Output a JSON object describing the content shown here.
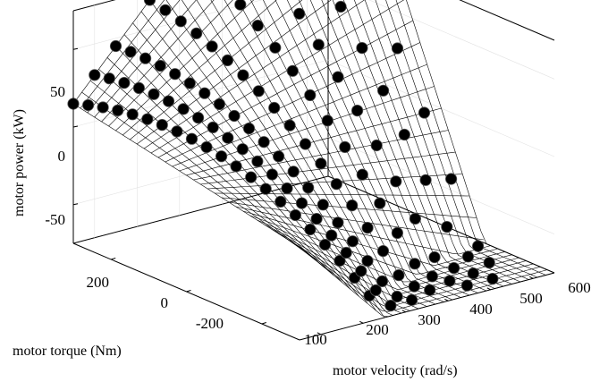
{
  "chart_data": {
    "type": "scatter",
    "subtype": "3d-surface-with-points",
    "title": "",
    "x_axis": {
      "label": "motor velocity (rad/s)",
      "ticks": [
        "100",
        "200",
        "300",
        "400",
        "500",
        "600"
      ],
      "range": [
        50,
        650
      ]
    },
    "y_axis": {
      "label": "motor torque (Nm)",
      "ticks": [
        "200",
        "0",
        "-200"
      ],
      "range": [
        -300,
        300
      ]
    },
    "z_axis": {
      "label": "motor power (kW)",
      "ticks": [
        "50",
        "0",
        "-50"
      ],
      "range": [
        -75,
        75
      ]
    },
    "surface": {
      "mesh_color": "#000000",
      "background": "#ffffff",
      "grid_lines_x": 31,
      "grid_lines_y": 33
    },
    "points_color": "#000000",
    "series": [
      {
        "x": [
          50,
          60,
          70,
          80,
          90,
          100,
          110,
          120,
          130,
          140,
          150,
          160,
          170,
          180,
          190,
          200,
          210,
          220,
          230,
          240,
          250
        ],
        "y": [
          300,
          272,
          244,
          216,
          188,
          160,
          132,
          104,
          76,
          48,
          20,
          -8,
          -36,
          -64,
          -92,
          -120,
          -148,
          -176,
          -204,
          -232,
          -260
        ]
      },
      {
        "x": [
          100,
          110,
          120,
          130,
          140,
          150,
          160,
          170,
          180,
          190,
          200,
          210,
          220,
          230,
          240,
          250,
          260,
          270,
          280,
          290,
          300
        ],
        "y": [
          300,
          272,
          244,
          216,
          188,
          160,
          132,
          104,
          76,
          48,
          20,
          -8,
          -36,
          -64,
          -92,
          -120,
          -148,
          -176,
          -204,
          -232,
          -260
        ]
      },
      {
        "x": [
          150,
          160,
          170,
          180,
          190,
          200,
          210,
          220,
          230,
          240,
          250,
          260,
          270,
          280,
          290,
          300,
          310,
          320,
          330,
          340,
          350
        ],
        "y": [
          300,
          272,
          244,
          216,
          188,
          160,
          132,
          104,
          76,
          48,
          20,
          -8,
          -36,
          -64,
          -92,
          -120,
          -148,
          -176,
          -204,
          -232,
          -260
        ]
      },
      {
        "x": [
          230,
          240,
          250,
          260,
          270,
          280,
          290,
          300,
          310,
          320,
          330,
          340,
          350,
          360,
          370,
          380,
          390,
          400,
          410
        ],
        "y": [
          300,
          270,
          240,
          210,
          180,
          150,
          120,
          90,
          60,
          30,
          0,
          -30,
          -60,
          -90,
          -120,
          -150,
          -180,
          -210,
          -240
        ]
      },
      {
        "x": [
          320,
          330,
          340,
          350,
          360,
          370,
          380,
          390,
          400,
          410,
          420,
          430,
          440,
          450,
          460,
          470,
          480
        ],
        "y": [
          300,
          265,
          230,
          195,
          160,
          125,
          90,
          55,
          20,
          -15,
          -50,
          -85,
          -120,
          -155,
          -190,
          -225,
          -260
        ]
      },
      {
        "x": [
          400,
          410,
          420,
          430,
          440,
          450,
          460,
          470,
          480,
          490,
          500,
          510,
          520,
          530,
          540
        ],
        "y": [
          300,
          260,
          220,
          180,
          140,
          100,
          60,
          20,
          -20,
          -60,
          -100,
          -140,
          -180,
          -220,
          -260
        ]
      },
      {
        "x": [
          480,
          490,
          500,
          510,
          520,
          530,
          540,
          550,
          560,
          570,
          580,
          590
        ],
        "y": [
          300,
          255,
          210,
          165,
          120,
          75,
          30,
          -15,
          -60,
          -105,
          -150,
          -195
        ]
      },
      {
        "x": [
          560,
          570,
          580,
          590,
          600,
          610,
          620,
          630
        ],
        "y": [
          300,
          240,
          180,
          120,
          60,
          0,
          -60,
          -120
        ]
      }
    ],
    "z_rule": "power_kW = velocity * torque / 1000 (clamped to z range)",
    "grid": true
  }
}
